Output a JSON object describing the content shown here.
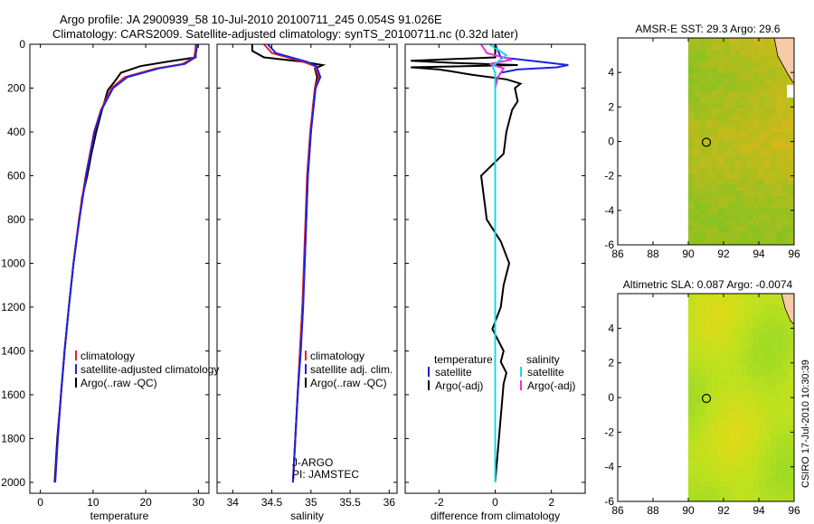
{
  "header": {
    "line1": "Argo profile: JA 2900939_58 10-Jul-2010 20100711_245 0.054S 91.026E",
    "line2": "Climatology: CARS2009. Satellite-adjusted climatology: synTS_20100711.nc (0.32d later)"
  },
  "colors": {
    "red": "#e8202a",
    "blue": "#1c22e0",
    "black": "#000000",
    "cyan": "#19d8e6",
    "magenta": "#e830d8",
    "land": "#f7cba8"
  },
  "chart_data": [
    {
      "type": "line",
      "id": "temperature",
      "xlabel": "temperature",
      "ylabel": "",
      "xlim": [
        -2,
        32
      ],
      "ylim": [
        2050,
        0
      ],
      "xticks": [
        0,
        10,
        20,
        30
      ],
      "yticks": [
        0,
        200,
        400,
        600,
        800,
        1000,
        1200,
        1400,
        1600,
        1800,
        2000
      ],
      "xticklabels": [
        "0",
        "10",
        "20",
        "30"
      ],
      "yticklabels": [
        "0",
        "200",
        "400",
        "600",
        "800",
        "1000",
        "1200",
        "1400",
        "1600",
        "1800",
        "2000"
      ],
      "legend": [
        "climatology",
        "satellite-adjusted climatology",
        "Argo(..raw -QC)"
      ],
      "series": [
        {
          "name": "climatology",
          "color": "red",
          "depth": [
            0,
            60,
            90,
            110,
            150,
            200,
            300,
            400,
            500,
            600,
            800,
            1000,
            1200,
            1400,
            1600,
            1800,
            2000
          ],
          "values": [
            29.6,
            29.2,
            27,
            22,
            16,
            13.5,
            11.5,
            10.2,
            9.4,
            8.6,
            7.3,
            6.3,
            5.4,
            4.6,
            3.9,
            3.3,
            2.8
          ]
        },
        {
          "name": "satellite-adjusted climatology",
          "color": "blue",
          "depth": [
            0,
            60,
            90,
            110,
            150,
            200,
            300,
            400,
            500,
            600,
            800,
            1000,
            1200,
            1400,
            1600,
            1800,
            2000
          ],
          "values": [
            29.8,
            29.4,
            27.4,
            22.5,
            16.5,
            13.8,
            11.6,
            10.3,
            9.5,
            8.7,
            7.4,
            6.3,
            5.4,
            4.6,
            3.9,
            3.3,
            2.8
          ]
        },
        {
          "name": "Argo(..raw -QC)",
          "color": "black",
          "depth": [
            0,
            60,
            80,
            100,
            130,
            170,
            210,
            260,
            300,
            400,
            500,
            600,
            700,
            800,
            900,
            1000,
            1200,
            1400,
            1600,
            1800,
            2000
          ],
          "values": [
            29.5,
            29.5,
            24,
            19,
            15.3,
            14.1,
            12.8,
            12.2,
            11.7,
            10.6,
            9.7,
            8.9,
            7.9,
            7.4,
            6.8,
            6.3,
            5.4,
            4.6,
            3.9,
            3.2,
            2.7
          ]
        }
      ]
    },
    {
      "type": "line",
      "id": "salinity",
      "xlabel": "salinity",
      "xlim": [
        33.8,
        36.1
      ],
      "ylim": [
        2050,
        0
      ],
      "xticks": [
        34,
        34.5,
        35,
        35.5,
        36
      ],
      "xticklabels": [
        "34",
        "34.5",
        "35",
        "35.5",
        "36"
      ],
      "legend": [
        "climatology",
        "satellite adj. clim.",
        "Argo(..raw -QC)"
      ],
      "annotations": [
        "J-ARGO",
        "PI: JAMSTEC"
      ],
      "series": [
        {
          "name": "climatology",
          "color": "red",
          "depth": [
            0,
            40,
            80,
            100,
            150,
            200,
            300,
            400,
            600,
            800,
            1000,
            1200,
            1400,
            1600,
            1800,
            2000
          ],
          "values": [
            34.4,
            34.5,
            34.9,
            35.05,
            35.1,
            35.05,
            35.02,
            34.99,
            34.95,
            34.93,
            34.91,
            34.89,
            34.86,
            34.83,
            34.8,
            34.77
          ]
        },
        {
          "name": "satellite adj. clim.",
          "color": "blue",
          "depth": [
            0,
            40,
            80,
            100,
            150,
            200,
            300,
            400,
            600,
            800,
            1000,
            1200,
            1400,
            1600,
            1800,
            2000
          ],
          "values": [
            34.45,
            34.55,
            34.95,
            35.07,
            35.12,
            35.06,
            35.03,
            35.0,
            34.96,
            34.94,
            34.92,
            34.9,
            34.87,
            34.83,
            34.8,
            34.77
          ]
        },
        {
          "name": "Argo(..raw -QC)",
          "color": "black",
          "depth": [
            0,
            30,
            60,
            80,
            95,
            110,
            150,
            200,
            300,
            400,
            600,
            800,
            1000,
            1200,
            1400,
            1600,
            1800,
            2000
          ],
          "values": [
            34.25,
            34.25,
            34.4,
            34.9,
            35.15,
            35.05,
            35.08,
            35.05,
            35.02,
            35.0,
            34.96,
            34.94,
            34.92,
            34.89,
            34.86,
            34.83,
            34.8,
            34.77
          ]
        }
      ]
    },
    {
      "type": "line",
      "id": "difference",
      "xlabel": "difference from climatology",
      "xlim": [
        -3.2,
        3.2
      ],
      "ylim": [
        2050,
        0
      ],
      "xticks": [
        -2,
        0,
        2
      ],
      "xticklabels": [
        "-2",
        "0",
        "2"
      ],
      "legend_titles": [
        "temperature",
        "salinity"
      ],
      "legend": [
        "satellite",
        "Argo(-adj)",
        "satellite",
        "Argo(-adj)"
      ],
      "series": [
        {
          "name": "temperature satellite",
          "color": "blue",
          "depth": [
            0,
            60,
            80,
            95,
            105,
            115,
            130,
            160,
            200,
            300,
            600,
            1000,
            1500,
            2000
          ],
          "values": [
            0,
            0.2,
            1.6,
            2.6,
            2.2,
            0.8,
            0.2,
            0.05,
            0,
            0,
            0,
            0,
            0,
            0
          ]
        },
        {
          "name": "temperature Argo(-adj)",
          "color": "black",
          "depth": [
            0,
            60,
            75,
            85,
            95,
            105,
            115,
            125,
            140,
            160,
            180,
            200,
            260,
            300,
            350,
            400,
            500,
            600,
            700,
            800,
            900,
            1000,
            1100,
            1200,
            1300,
            1400,
            1450,
            1500,
            1550,
            2000
          ],
          "values": [
            0,
            0,
            -3,
            -1.5,
            0.8,
            -3,
            -2,
            -1.5,
            -0.8,
            0.4,
            0.9,
            0.7,
            0.8,
            0.6,
            0.5,
            0.4,
            0.3,
            -0.5,
            -0.4,
            -0.3,
            0.2,
            0.5,
            0.3,
            0.2,
            -0.1,
            0.3,
            0.2,
            0.4,
            0.3,
            0
          ]
        },
        {
          "name": "salinity satellite",
          "color": "cyan",
          "depth": [
            0,
            50,
            80,
            100,
            130,
            200,
            2000
          ],
          "values": [
            -0.2,
            0.4,
            0.1,
            -0.1,
            0,
            0,
            0
          ]
        },
        {
          "name": "salinity Argo(-adj)",
          "color": "magenta",
          "depth": [
            0,
            40,
            70,
            90,
            110,
            150,
            200,
            400,
            700,
            1000,
            2000
          ],
          "values": [
            -0.5,
            -0.3,
            0.6,
            -0.2,
            0.3,
            0.1,
            0,
            0,
            0,
            0,
            0
          ]
        }
      ]
    },
    {
      "type": "heatmap",
      "id": "sst",
      "title": "AMSR-E SST: 29.3 Argo: 29.6",
      "xlim": [
        86,
        96
      ],
      "ylim": [
        -6,
        6
      ],
      "xticks": [
        86,
        88,
        90,
        92,
        94,
        96
      ],
      "yticks": [
        -6,
        -4,
        -2,
        0,
        2,
        4
      ],
      "xticklabels": [
        "86",
        "88",
        "90",
        "92",
        "94",
        "96"
      ],
      "yticklabels": [
        "-6",
        "-4",
        "-2",
        "0",
        "2",
        "4"
      ],
      "data_extent_lon": [
        90,
        96
      ],
      "marker": {
        "lon": 91.026,
        "lat": -0.054
      }
    },
    {
      "type": "heatmap",
      "id": "sla",
      "title": "Altimetric SLA: 0.087 Argo: -0.0074",
      "xlim": [
        86,
        96
      ],
      "ylim": [
        -6,
        6
      ],
      "xticks": [
        86,
        88,
        90,
        92,
        94,
        96
      ],
      "yticks": [
        -6,
        -4,
        -2,
        0,
        2,
        4
      ],
      "xticklabels": [
        "86",
        "88",
        "90",
        "92",
        "94",
        "96"
      ],
      "yticklabels": [
        "-6",
        "-4",
        "-2",
        "0",
        "2",
        "4"
      ],
      "data_extent_lon": [
        90,
        96
      ],
      "marker": {
        "lon": 91.026,
        "lat": -0.054
      }
    }
  ],
  "footer": {
    "stamp": "CSIRO 17-Jul-2010 10:30:39"
  }
}
